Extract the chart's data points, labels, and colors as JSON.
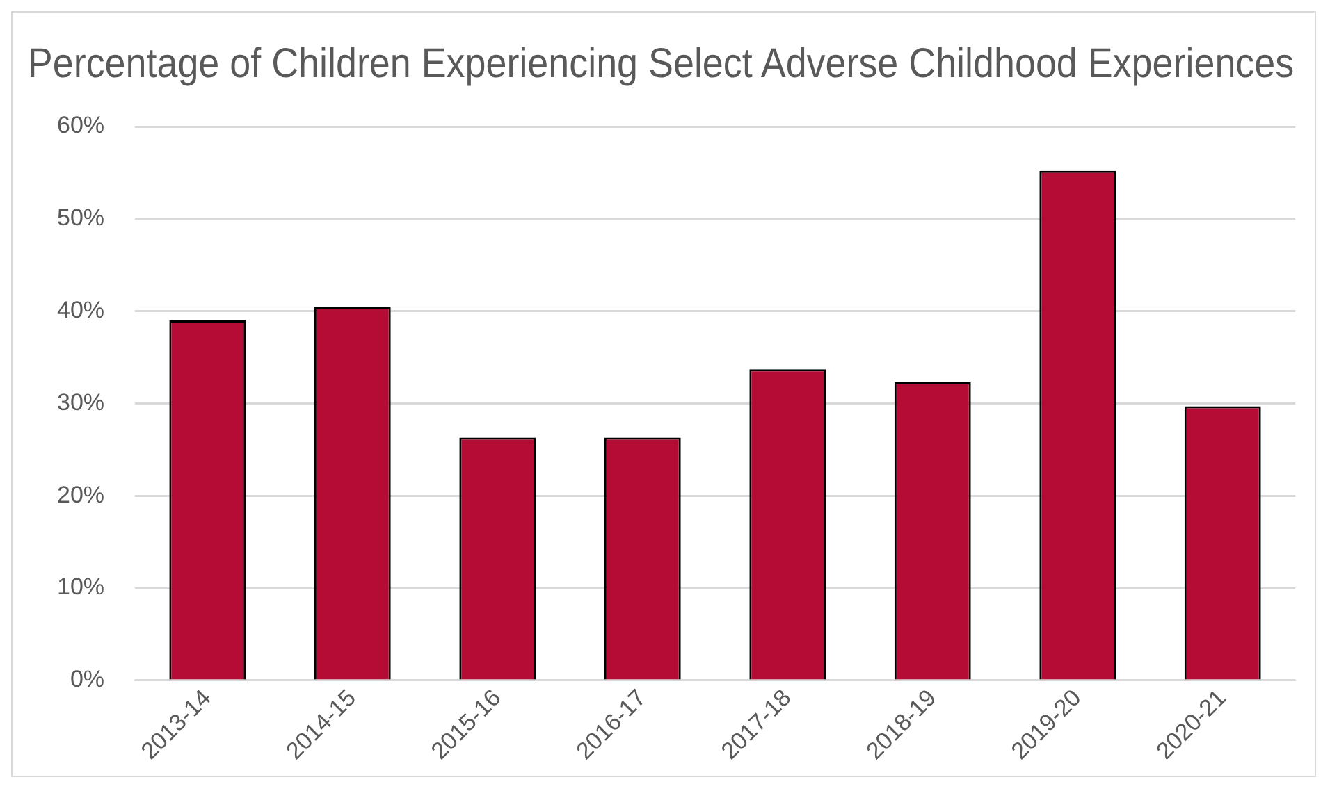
{
  "chart_data": {
    "type": "bar",
    "title": "Percentage of Children Experiencing Select Adverse Childhood Experiences",
    "categories": [
      "2013-14",
      "2014-15",
      "2015-16",
      "2016-17",
      "2017-18",
      "2018-19",
      "2019-20",
      "2020-21"
    ],
    "values": [
      39.0,
      40.5,
      26.3,
      26.3,
      33.7,
      32.3,
      55.2,
      29.7
    ],
    "color": "#b50c36",
    "ylim": [
      0,
      60
    ],
    "yticks": [
      {
        "value": 0,
        "label": "0%"
      },
      {
        "value": 10,
        "label": "10%"
      },
      {
        "value": 20,
        "label": "20%"
      },
      {
        "value": 30,
        "label": "30%"
      },
      {
        "value": 40,
        "label": "40%"
      },
      {
        "value": 50,
        "label": "50%"
      },
      {
        "value": 60,
        "label": "60%"
      }
    ],
    "grid": "y"
  }
}
